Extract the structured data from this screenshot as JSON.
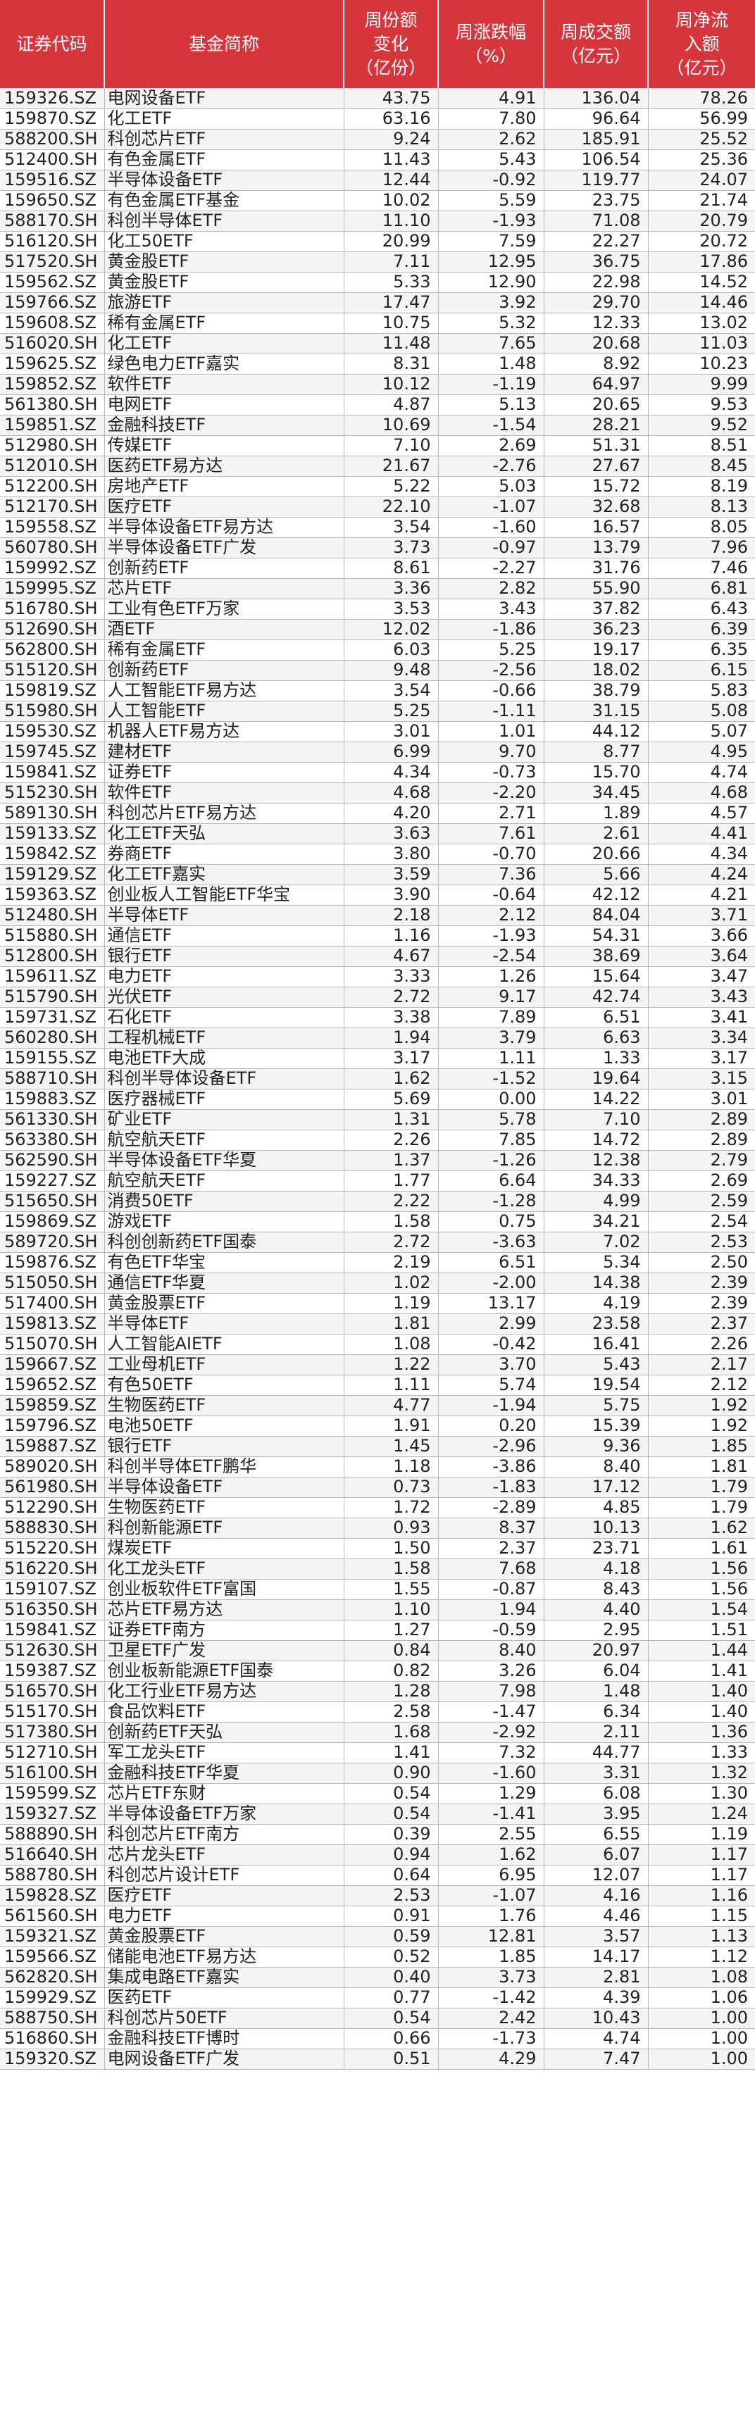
{
  "headers": [
    "证券代码",
    "基金简称",
    "周份额\n变化\n（亿份）",
    "周涨跌幅\n（%）",
    "周成交额\n（亿元）",
    "周净流\n入额\n（亿元）"
  ],
  "rows": [
    [
      "159326.SZ",
      "电网设备ETF",
      "43.75",
      "4.91",
      "136.04",
      "78.26"
    ],
    [
      "159870.SZ",
      "化工ETF",
      "63.16",
      "7.80",
      "96.64",
      "56.99"
    ],
    [
      "588200.SH",
      "科创芯片ETF",
      "9.24",
      "2.62",
      "185.91",
      "25.52"
    ],
    [
      "512400.SH",
      "有色金属ETF",
      "11.43",
      "5.43",
      "106.54",
      "25.36"
    ],
    [
      "159516.SZ",
      "半导体设备ETF",
      "12.44",
      "-0.92",
      "119.77",
      "24.07"
    ],
    [
      "159650.SZ",
      "有色金属ETF基金",
      "10.02",
      "5.59",
      "23.75",
      "21.74"
    ],
    [
      "588170.SH",
      "科创半导体ETF",
      "11.10",
      "-1.93",
      "71.08",
      "20.79"
    ],
    [
      "516120.SH",
      "化工50ETF",
      "20.99",
      "7.59",
      "22.27",
      "20.72"
    ],
    [
      "517520.SH",
      "黄金股ETF",
      "7.11",
      "12.95",
      "36.75",
      "17.86"
    ],
    [
      "159562.SZ",
      "黄金股ETF",
      "5.33",
      "12.90",
      "22.98",
      "14.52"
    ],
    [
      "159766.SZ",
      "旅游ETF",
      "17.47",
      "3.92",
      "29.70",
      "14.46"
    ],
    [
      "159608.SZ",
      "稀有金属ETF",
      "10.75",
      "5.32",
      "12.33",
      "13.02"
    ],
    [
      "516020.SH",
      "化工ETF",
      "11.48",
      "7.65",
      "20.68",
      "11.03"
    ],
    [
      "159625.SZ",
      "绿色电力ETF嘉实",
      "8.31",
      "1.48",
      "8.92",
      "10.23"
    ],
    [
      "159852.SZ",
      "软件ETF",
      "10.12",
      "-1.19",
      "64.97",
      "9.99"
    ],
    [
      "561380.SH",
      "电网ETF",
      "4.87",
      "5.13",
      "20.65",
      "9.53"
    ],
    [
      "159851.SZ",
      "金融科技ETF",
      "10.69",
      "-1.54",
      "28.21",
      "9.52"
    ],
    [
      "512980.SH",
      "传媒ETF",
      "7.10",
      "2.69",
      "51.31",
      "8.51"
    ],
    [
      "512010.SH",
      "医药ETF易方达",
      "21.67",
      "-2.76",
      "27.67",
      "8.45"
    ],
    [
      "512200.SH",
      "房地产ETF",
      "5.22",
      "5.03",
      "15.72",
      "8.19"
    ],
    [
      "512170.SH",
      "医疗ETF",
      "22.10",
      "-1.07",
      "32.68",
      "8.13"
    ],
    [
      "159558.SZ",
      "半导体设备ETF易方达",
      "3.54",
      "-1.60",
      "16.57",
      "8.05"
    ],
    [
      "560780.SH",
      "半导体设备ETF广发",
      "3.73",
      "-0.97",
      "13.79",
      "7.96"
    ],
    [
      "159992.SZ",
      "创新药ETF",
      "8.61",
      "-2.27",
      "31.76",
      "7.46"
    ],
    [
      "159995.SZ",
      "芯片ETF",
      "3.36",
      "2.82",
      "55.90",
      "6.81"
    ],
    [
      "516780.SH",
      "工业有色ETF万家",
      "3.53",
      "3.43",
      "37.82",
      "6.43"
    ],
    [
      "512690.SH",
      "酒ETF",
      "12.02",
      "-1.86",
      "36.23",
      "6.39"
    ],
    [
      "562800.SH",
      "稀有金属ETF",
      "6.03",
      "5.25",
      "19.17",
      "6.35"
    ],
    [
      "515120.SH",
      "创新药ETF",
      "9.48",
      "-2.56",
      "18.02",
      "6.15"
    ],
    [
      "159819.SZ",
      "人工智能ETF易方达",
      "3.54",
      "-0.66",
      "38.79",
      "5.83"
    ],
    [
      "515980.SH",
      "人工智能ETF",
      "5.25",
      "-1.11",
      "31.15",
      "5.08"
    ],
    [
      "159530.SZ",
      "机器人ETF易方达",
      "3.01",
      "1.01",
      "44.12",
      "5.07"
    ],
    [
      "159745.SZ",
      "建材ETF",
      "6.99",
      "9.70",
      "8.77",
      "4.95"
    ],
    [
      "159841.SZ",
      "证券ETF",
      "4.34",
      "-0.73",
      "15.70",
      "4.74"
    ],
    [
      "515230.SH",
      "软件ETF",
      "4.68",
      "-2.20",
      "34.45",
      "4.68"
    ],
    [
      "589130.SH",
      "科创芯片ETF易方达",
      "4.20",
      "2.71",
      "1.89",
      "4.57"
    ],
    [
      "159133.SZ",
      "化工ETF天弘",
      "3.63",
      "7.61",
      "2.61",
      "4.41"
    ],
    [
      "159842.SZ",
      "券商ETF",
      "3.80",
      "-0.70",
      "20.66",
      "4.34"
    ],
    [
      "159129.SZ",
      "化工ETF嘉实",
      "3.59",
      "7.36",
      "5.66",
      "4.24"
    ],
    [
      "159363.SZ",
      "创业板人工智能ETF华宝",
      "3.90",
      "-0.64",
      "42.12",
      "4.21"
    ],
    [
      "512480.SH",
      "半导体ETF",
      "2.18",
      "2.12",
      "84.04",
      "3.71"
    ],
    [
      "515880.SH",
      "通信ETF",
      "1.16",
      "-1.93",
      "54.31",
      "3.66"
    ],
    [
      "512800.SH",
      "银行ETF",
      "4.67",
      "-2.54",
      "38.69",
      "3.64"
    ],
    [
      "159611.SZ",
      "电力ETF",
      "3.33",
      "1.26",
      "15.64",
      "3.47"
    ],
    [
      "515790.SH",
      "光伏ETF",
      "2.72",
      "9.17",
      "42.74",
      "3.43"
    ],
    [
      "159731.SZ",
      "石化ETF",
      "3.38",
      "7.89",
      "6.51",
      "3.41"
    ],
    [
      "560280.SH",
      "工程机械ETF",
      "1.94",
      "3.79",
      "6.63",
      "3.34"
    ],
    [
      "159155.SZ",
      "电池ETF大成",
      "3.17",
      "1.11",
      "1.33",
      "3.17"
    ],
    [
      "588710.SH",
      "科创半导体设备ETF",
      "1.62",
      "-1.52",
      "19.64",
      "3.15"
    ],
    [
      "159883.SZ",
      "医疗器械ETF",
      "5.69",
      "0.00",
      "14.22",
      "3.01"
    ],
    [
      "561330.SH",
      "矿业ETF",
      "1.31",
      "5.78",
      "7.10",
      "2.89"
    ],
    [
      "563380.SH",
      "航空航天ETF",
      "2.26",
      "7.85",
      "14.72",
      "2.89"
    ],
    [
      "562590.SH",
      "半导体设备ETF华夏",
      "1.37",
      "-1.26",
      "12.38",
      "2.79"
    ],
    [
      "159227.SZ",
      "航空航天ETF",
      "1.77",
      "6.64",
      "34.33",
      "2.69"
    ],
    [
      "515650.SH",
      "消费50ETF",
      "2.22",
      "-1.28",
      "4.99",
      "2.59"
    ],
    [
      "159869.SZ",
      "游戏ETF",
      "1.58",
      "0.75",
      "34.21",
      "2.54"
    ],
    [
      "589720.SH",
      "科创创新药ETF国泰",
      "2.72",
      "-3.63",
      "7.02",
      "2.53"
    ],
    [
      "159876.SZ",
      "有色ETF华宝",
      "2.19",
      "6.51",
      "5.34",
      "2.50"
    ],
    [
      "515050.SH",
      "通信ETF华夏",
      "1.02",
      "-2.00",
      "14.38",
      "2.39"
    ],
    [
      "517400.SH",
      "黄金股票ETF",
      "1.19",
      "13.17",
      "4.19",
      "2.39"
    ],
    [
      "159813.SZ",
      "半导体ETF",
      "1.81",
      "2.99",
      "23.58",
      "2.37"
    ],
    [
      "515070.SH",
      "人工智能AIETF",
      "1.08",
      "-0.42",
      "16.41",
      "2.26"
    ],
    [
      "159667.SZ",
      "工业母机ETF",
      "1.22",
      "3.70",
      "5.43",
      "2.17"
    ],
    [
      "159652.SZ",
      "有色50ETF",
      "1.11",
      "5.74",
      "19.54",
      "2.12"
    ],
    [
      "159859.SZ",
      "生物医药ETF",
      "4.77",
      "-1.94",
      "5.75",
      "1.92"
    ],
    [
      "159796.SZ",
      "电池50ETF",
      "1.91",
      "0.20",
      "15.39",
      "1.92"
    ],
    [
      "159887.SZ",
      "银行ETF",
      "1.45",
      "-2.96",
      "9.36",
      "1.85"
    ],
    [
      "589020.SH",
      "科创半导体ETF鹏华",
      "1.18",
      "-3.86",
      "8.40",
      "1.81"
    ],
    [
      "561980.SH",
      "半导体设备ETF",
      "0.73",
      "-1.83",
      "17.12",
      "1.79"
    ],
    [
      "512290.SH",
      "生物医药ETF",
      "1.72",
      "-2.89",
      "4.85",
      "1.79"
    ],
    [
      "588830.SH",
      "科创新能源ETF",
      "0.93",
      "8.37",
      "10.13",
      "1.62"
    ],
    [
      "515220.SH",
      "煤炭ETF",
      "1.50",
      "2.37",
      "23.71",
      "1.61"
    ],
    [
      "516220.SH",
      "化工龙头ETF",
      "1.58",
      "7.68",
      "4.18",
      "1.56"
    ],
    [
      "159107.SZ",
      "创业板软件ETF富国",
      "1.55",
      "-0.87",
      "8.43",
      "1.56"
    ],
    [
      "516350.SH",
      "芯片ETF易方达",
      "1.10",
      "1.94",
      "4.40",
      "1.54"
    ],
    [
      "159841.SZ",
      "证券ETF南方",
      "1.27",
      "-0.59",
      "2.95",
      "1.51"
    ],
    [
      "512630.SH",
      "卫星ETF广发",
      "0.84",
      "8.40",
      "20.97",
      "1.44"
    ],
    [
      "159387.SZ",
      "创业板新能源ETF国泰",
      "0.82",
      "3.26",
      "6.04",
      "1.41"
    ],
    [
      "516570.SH",
      "化工行业ETF易方达",
      "1.28",
      "7.98",
      "1.48",
      "1.40"
    ],
    [
      "515170.SH",
      "食品饮料ETF",
      "2.58",
      "-1.47",
      "6.34",
      "1.40"
    ],
    [
      "517380.SH",
      "创新药ETF天弘",
      "1.68",
      "-2.92",
      "2.11",
      "1.36"
    ],
    [
      "512710.SH",
      "军工龙头ETF",
      "1.41",
      "7.32",
      "44.77",
      "1.33"
    ],
    [
      "516100.SH",
      "金融科技ETF华夏",
      "0.90",
      "-1.60",
      "3.31",
      "1.32"
    ],
    [
      "159599.SZ",
      "芯片ETF东财",
      "0.54",
      "1.29",
      "6.08",
      "1.30"
    ],
    [
      "159327.SZ",
      "半导体设备ETF万家",
      "0.54",
      "-1.41",
      "3.95",
      "1.24"
    ],
    [
      "588890.SH",
      "科创芯片ETF南方",
      "0.39",
      "2.55",
      "6.55",
      "1.19"
    ],
    [
      "516640.SH",
      "芯片龙头ETF",
      "0.94",
      "1.62",
      "6.07",
      "1.17"
    ],
    [
      "588780.SH",
      "科创芯片设计ETF",
      "0.64",
      "6.95",
      "12.07",
      "1.17"
    ],
    [
      "159828.SZ",
      "医疗ETF",
      "2.53",
      "-1.07",
      "4.16",
      "1.16"
    ],
    [
      "561560.SH",
      "电力ETF",
      "0.91",
      "1.76",
      "4.46",
      "1.15"
    ],
    [
      "159321.SZ",
      "黄金股票ETF",
      "0.59",
      "12.81",
      "3.57",
      "1.13"
    ],
    [
      "159566.SZ",
      "储能电池ETF易方达",
      "0.52",
      "1.85",
      "14.17",
      "1.12"
    ],
    [
      "562820.SH",
      "集成电路ETF嘉实",
      "0.40",
      "3.73",
      "2.81",
      "1.08"
    ],
    [
      "159929.SZ",
      "医药ETF",
      "0.77",
      "-1.42",
      "4.39",
      "1.06"
    ],
    [
      "588750.SH",
      "科创芯片50ETF",
      "0.54",
      "2.42",
      "10.43",
      "1.00"
    ],
    [
      "516860.SH",
      "金融科技ETF博时",
      "0.66",
      "-1.73",
      "4.74",
      "1.00"
    ],
    [
      "159320.SZ",
      "电网设备ETF广发",
      "0.51",
      "4.29",
      "7.47",
      "1.00"
    ]
  ]
}
